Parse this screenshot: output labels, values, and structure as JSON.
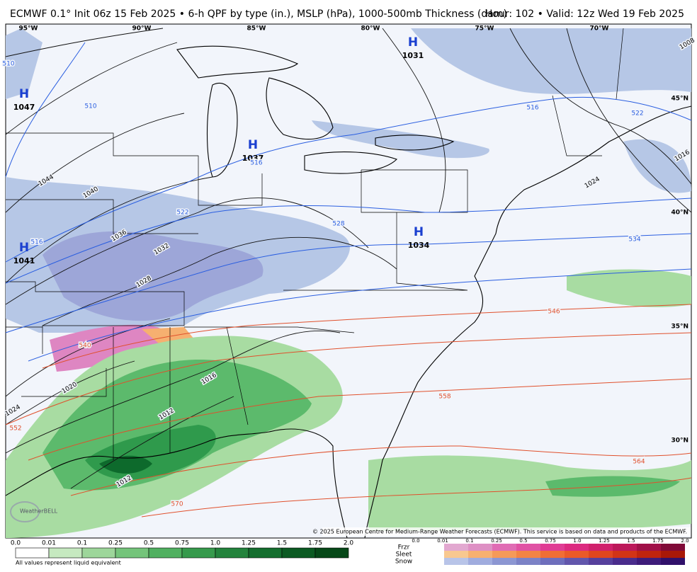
{
  "header": {
    "title": "ECMWF 0.1° Init 06z 15 Feb 2025 • 6-h QPF by type (in.), MSLP (hPa), 1000-500mb Thickness (dam)",
    "right": "Hour: 102 • Valid: 12z Wed 19 Feb 2025"
  },
  "map": {
    "longitudes": [
      "95°W",
      "90°W",
      "85°W",
      "80°W",
      "75°W",
      "70°W"
    ],
    "latitudes": [
      "45°N",
      "40°N",
      "35°N",
      "30°N"
    ],
    "highs": [
      {
        "label": "H",
        "pressure": "1047"
      },
      {
        "label": "H",
        "pressure": "1031"
      },
      {
        "label": "H",
        "pressure": "1037"
      },
      {
        "label": "H",
        "pressure": "1041"
      },
      {
        "label": "H",
        "pressure": "1034"
      }
    ],
    "isobar_labels": [
      "1044",
      "1040",
      "1036",
      "1032",
      "1028",
      "1024",
      "1020",
      "1016",
      "1012",
      "1012",
      "1016",
      "1024",
      "1008"
    ],
    "thickness_cold_labels": [
      "510",
      "510",
      "516",
      "516",
      "522",
      "528",
      "534",
      "516",
      "522"
    ],
    "thickness_warm_labels": [
      "540",
      "546",
      "552",
      "558",
      "564",
      "570"
    ],
    "copyright": "© 2025 European Centre for Medium-Range Weather Forecasts (ECMWF). This service is based on data and products of the ECMWF.",
    "logo": "WeatherBELL"
  },
  "legend": {
    "rain_ticks": [
      "0.0",
      "0.01",
      "0.1",
      "0.25",
      "0.5",
      "0.75",
      "1.0",
      "1.25",
      "1.5",
      "1.75",
      "2.0"
    ],
    "note": "All values represent liquid equivalent",
    "ptype_names": [
      "Frzr",
      "Sleet",
      "Snow"
    ],
    "ptype_ticks": [
      "0.0",
      "0.01",
      "0.1",
      "0.25",
      "0.5",
      "0.75",
      "1.0",
      "1.25",
      "1.5",
      "1.75",
      "2.0"
    ]
  }
}
